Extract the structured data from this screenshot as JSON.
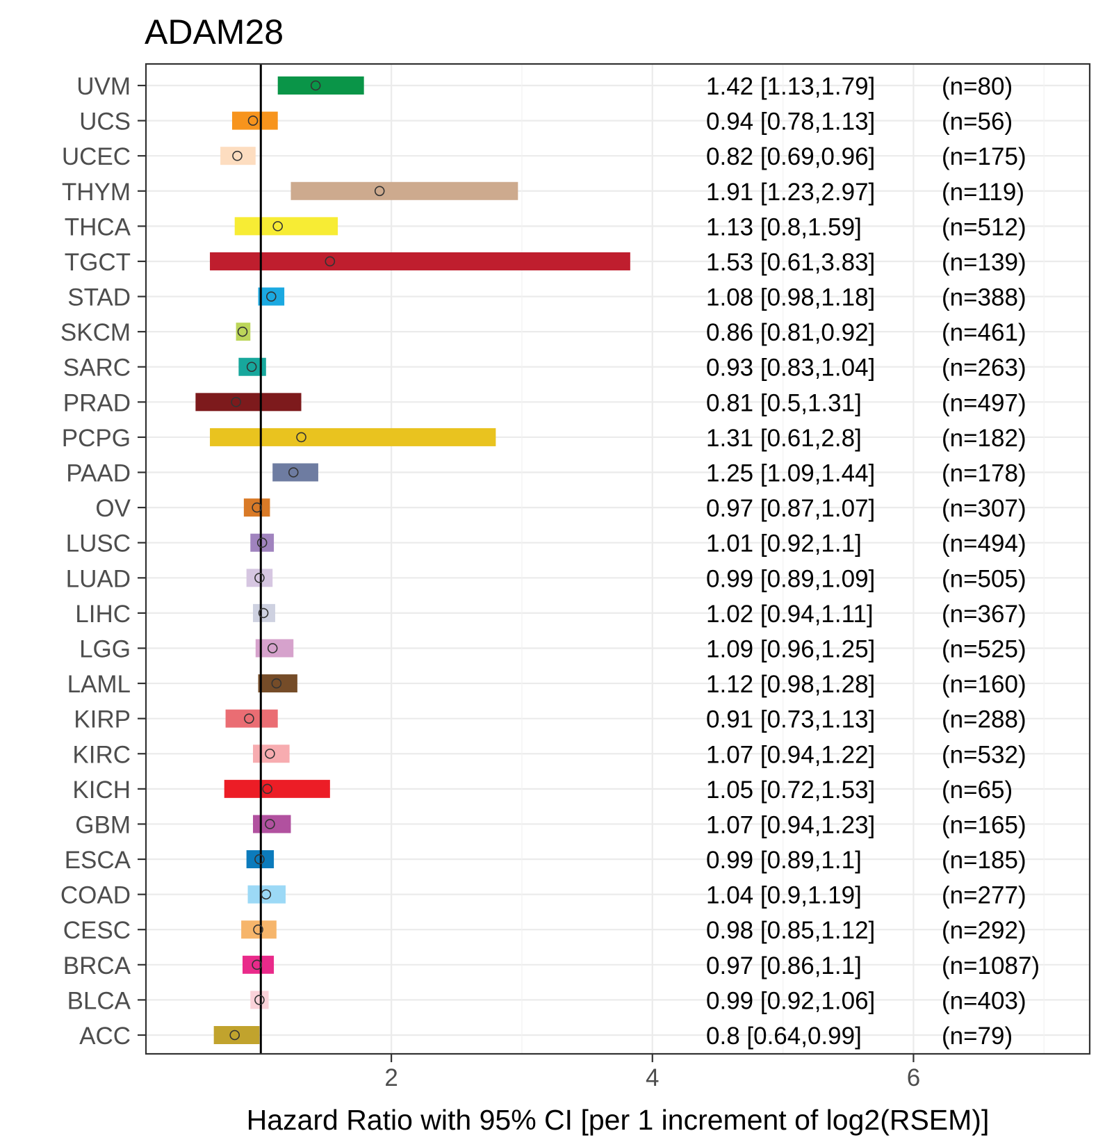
{
  "chart_data": {
    "type": "forest",
    "title": "ADAM28",
    "xlabel": "Hazard Ratio with 95% CI [per 1 increment of log2(RSEM)]",
    "ylabel": "",
    "xlim": [
      0.12,
      7.35
    ],
    "xticks": [
      2,
      4,
      6
    ],
    "xtick_labels": [
      "2",
      "4",
      "6"
    ],
    "reference_line": 1,
    "grid": true,
    "rows": [
      {
        "label": "UVM",
        "hr": 1.42,
        "lo": 1.13,
        "hi": 1.79,
        "text": "1.42 [1.13,1.79]",
        "n": "(n=80)",
        "color": "#0A9548"
      },
      {
        "label": "UCS",
        "hr": 0.94,
        "lo": 0.78,
        "hi": 1.13,
        "text": "0.94 [0.78,1.13]",
        "n": "(n=56)",
        "color": "#F7941D"
      },
      {
        "label": "UCEC",
        "hr": 0.82,
        "lo": 0.69,
        "hi": 0.96,
        "text": "0.82 [0.69,0.96]",
        "n": "(n=175)",
        "color": "#FDDDC0"
      },
      {
        "label": "THYM",
        "hr": 1.91,
        "lo": 1.23,
        "hi": 2.97,
        "text": "1.91 [1.23,2.97]",
        "n": "(n=119)",
        "color": "#CDAA8E"
      },
      {
        "label": "THCA",
        "hr": 1.13,
        "lo": 0.8,
        "hi": 1.59,
        "text": "1.13 [0.8,1.59]",
        "n": "(n=512)",
        "color": "#F7EC34"
      },
      {
        "label": "TGCT",
        "hr": 1.53,
        "lo": 0.61,
        "hi": 3.83,
        "text": "1.53 [0.61,3.83]",
        "n": "(n=139)",
        "color": "#BF1E2E"
      },
      {
        "label": "STAD",
        "hr": 1.08,
        "lo": 0.98,
        "hi": 1.18,
        "text": "1.08 [0.98,1.18]",
        "n": "(n=388)",
        "color": "#1BA9E1"
      },
      {
        "label": "SKCM",
        "hr": 0.86,
        "lo": 0.81,
        "hi": 0.92,
        "text": "0.86 [0.81,0.92]",
        "n": "(n=461)",
        "color": "#BCD65A"
      },
      {
        "label": "SARC",
        "hr": 0.93,
        "lo": 0.83,
        "hi": 1.04,
        "text": "0.93 [0.83,1.04]",
        "n": "(n=263)",
        "color": "#17A79C"
      },
      {
        "label": "PRAD",
        "hr": 0.81,
        "lo": 0.5,
        "hi": 1.31,
        "text": "0.81 [0.5,1.31]",
        "n": "(n=497)",
        "color": "#7D1A1C"
      },
      {
        "label": "PCPG",
        "hr": 1.31,
        "lo": 0.61,
        "hi": 2.8,
        "text": "1.31 [0.61,2.8]",
        "n": "(n=182)",
        "color": "#E9C31F"
      },
      {
        "label": "PAAD",
        "hr": 1.25,
        "lo": 1.09,
        "hi": 1.44,
        "text": "1.25 [1.09,1.44]",
        "n": "(n=178)",
        "color": "#6E7CA1"
      },
      {
        "label": "OV",
        "hr": 0.97,
        "lo": 0.87,
        "hi": 1.07,
        "text": "0.97 [0.87,1.07]",
        "n": "(n=307)",
        "color": "#D97A27"
      },
      {
        "label": "LUSC",
        "hr": 1.01,
        "lo": 0.92,
        "hi": 1.1,
        "text": "1.01 [0.92,1.1]",
        "n": "(n=494)",
        "color": "#A083BE"
      },
      {
        "label": "LUAD",
        "hr": 0.99,
        "lo": 0.89,
        "hi": 1.09,
        "text": "0.99 [0.89,1.09]",
        "n": "(n=505)",
        "color": "#D6C6E1"
      },
      {
        "label": "LIHC",
        "hr": 1.02,
        "lo": 0.94,
        "hi": 1.11,
        "text": "1.02 [0.94,1.11]",
        "n": "(n=367)",
        "color": "#CED1E0"
      },
      {
        "label": "LGG",
        "hr": 1.09,
        "lo": 0.96,
        "hi": 1.25,
        "text": "1.09 [0.96,1.25]",
        "n": "(n=525)",
        "color": "#D6A2CC"
      },
      {
        "label": "LAML",
        "hr": 1.12,
        "lo": 0.98,
        "hi": 1.28,
        "text": "1.12 [0.98,1.28]",
        "n": "(n=160)",
        "color": "#754C28"
      },
      {
        "label": "KIRP",
        "hr": 0.91,
        "lo": 0.73,
        "hi": 1.13,
        "text": "0.91 [0.73,1.13]",
        "n": "(n=288)",
        "color": "#EA6D73"
      },
      {
        "label": "KIRC",
        "hr": 1.07,
        "lo": 0.94,
        "hi": 1.22,
        "text": "1.07 [0.94,1.22]",
        "n": "(n=532)",
        "color": "#F7ACB0"
      },
      {
        "label": "KICH",
        "hr": 1.05,
        "lo": 0.72,
        "hi": 1.53,
        "text": "1.05 [0.72,1.53]",
        "n": "(n=65)",
        "color": "#EC1D26"
      },
      {
        "label": "GBM",
        "hr": 1.07,
        "lo": 0.94,
        "hi": 1.23,
        "text": "1.07 [0.94,1.23]",
        "n": "(n=165)",
        "color": "#B1519F"
      },
      {
        "label": "ESCA",
        "hr": 0.99,
        "lo": 0.89,
        "hi": 1.1,
        "text": "0.99 [0.89,1.1]",
        "n": "(n=185)",
        "color": "#0C7BBC"
      },
      {
        "label": "COAD",
        "hr": 1.04,
        "lo": 0.9,
        "hi": 1.19,
        "text": "1.04 [0.9,1.19]",
        "n": "(n=277)",
        "color": "#9CD9F6"
      },
      {
        "label": "CESC",
        "hr": 0.98,
        "lo": 0.85,
        "hi": 1.12,
        "text": "0.98 [0.85,1.12]",
        "n": "(n=292)",
        "color": "#F6B56B"
      },
      {
        "label": "BRCA",
        "hr": 0.97,
        "lo": 0.86,
        "hi": 1.1,
        "text": "0.97 [0.86,1.1]",
        "n": "(n=1087)",
        "color": "#E92A8A"
      },
      {
        "label": "BLCA",
        "hr": 0.99,
        "lo": 0.92,
        "hi": 1.06,
        "text": "0.99 [0.92,1.06]",
        "n": "(n=403)",
        "color": "#FAD2D9"
      },
      {
        "label": "ACC",
        "hr": 0.8,
        "lo": 0.64,
        "hi": 0.99,
        "text": "0.8 [0.64,0.99]",
        "n": "(n=79)",
        "color": "#C1A32D"
      }
    ]
  }
}
